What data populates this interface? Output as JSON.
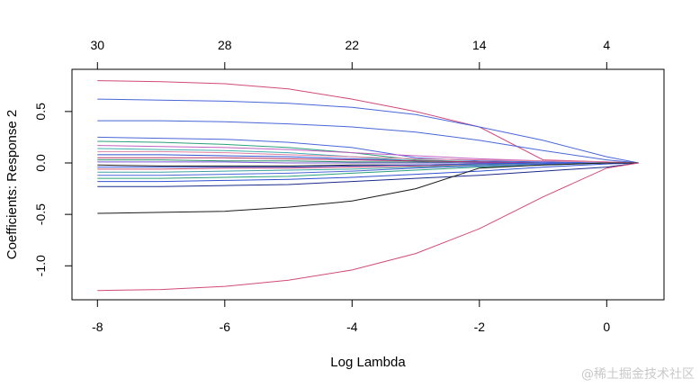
{
  "chart_data": {
    "type": "line",
    "xlabel": "Log Lambda",
    "ylabel": "Coefficients: Response 2",
    "xlim": [
      -8.4,
      0.9
    ],
    "ylim": [
      -1.33,
      0.91
    ],
    "x_ticks": [
      -8,
      -6,
      -4,
      -2,
      0
    ],
    "x_tick_labels": [
      "-8",
      "-6",
      "-4",
      "-2",
      "0"
    ],
    "y_ticks": [
      -1.0,
      -0.5,
      0.0,
      0.5
    ],
    "y_tick_labels": [
      "-1.0",
      "-0.5",
      "0.0",
      "0.5"
    ],
    "top_axis": {
      "positions": [
        -8,
        -6,
        -4,
        -2,
        0
      ],
      "labels": [
        "30",
        "28",
        "22",
        "14",
        "4"
      ]
    },
    "x": [
      -8,
      -7,
      -6,
      -5,
      -4,
      -3,
      -2,
      -1,
      0,
      0.5
    ],
    "series": [
      {
        "color": "#d04a7a",
        "values": [
          0.8,
          0.79,
          0.77,
          0.72,
          0.62,
          0.5,
          0.35,
          0.03,
          0.01,
          0.0
        ]
      },
      {
        "color": "#4a66d8",
        "values": [
          0.62,
          0.61,
          0.6,
          0.58,
          0.54,
          0.47,
          0.35,
          0.22,
          0.06,
          0.0
        ]
      },
      {
        "color": "#4a66d8",
        "values": [
          0.41,
          0.41,
          0.4,
          0.38,
          0.35,
          0.3,
          0.22,
          0.12,
          0.03,
          0.0
        ]
      },
      {
        "color": "#4a66d8",
        "values": [
          0.25,
          0.24,
          0.23,
          0.2,
          0.15,
          0.05,
          0.02,
          0.01,
          0.0,
          0.0
        ]
      },
      {
        "color": "#2aa07a",
        "values": [
          0.21,
          0.2,
          0.18,
          0.15,
          0.1,
          0.03,
          0.01,
          0.0,
          0.0,
          0.0
        ]
      },
      {
        "color": "#c060c0",
        "values": [
          0.17,
          0.16,
          0.15,
          0.13,
          0.1,
          0.07,
          0.04,
          0.02,
          0.01,
          0.0
        ]
      },
      {
        "color": "#40b0b0",
        "values": [
          0.14,
          0.13,
          0.12,
          0.1,
          0.06,
          0.02,
          0.01,
          0.0,
          0.0,
          0.0
        ]
      },
      {
        "color": "#e080a0",
        "values": [
          0.11,
          0.11,
          0.1,
          0.08,
          0.06,
          0.04,
          0.03,
          0.02,
          0.01,
          0.0
        ]
      },
      {
        "color": "#3050d0",
        "values": [
          0.08,
          0.08,
          0.07,
          0.06,
          0.04,
          0.02,
          0.01,
          0.0,
          0.0,
          0.0
        ]
      },
      {
        "color": "#b03060",
        "values": [
          0.05,
          0.05,
          0.05,
          0.04,
          0.03,
          0.02,
          0.01,
          0.0,
          0.0,
          0.0
        ]
      },
      {
        "color": "#2a8a6a",
        "values": [
          0.03,
          0.03,
          0.02,
          0.02,
          0.01,
          0.01,
          0.0,
          0.0,
          0.0,
          0.0
        ]
      },
      {
        "color": "#7a5ad0",
        "values": [
          0.01,
          0.01,
          0.01,
          0.0,
          0.0,
          0.0,
          0.0,
          0.0,
          0.0,
          0.0
        ]
      },
      {
        "color": "#1a1a1a",
        "values": [
          -0.02,
          -0.03,
          -0.03,
          -0.03,
          -0.02,
          -0.02,
          -0.01,
          0.0,
          0.0,
          0.0
        ]
      },
      {
        "color": "#3a5ae0",
        "values": [
          -0.04,
          -0.04,
          -0.04,
          -0.04,
          -0.03,
          -0.02,
          -0.01,
          0.0,
          0.0,
          0.0
        ]
      },
      {
        "color": "#d05070",
        "values": [
          -0.06,
          -0.06,
          -0.05,
          -0.05,
          -0.04,
          -0.03,
          -0.02,
          -0.01,
          0.0,
          0.0
        ]
      },
      {
        "color": "#40a0a0",
        "values": [
          -0.09,
          -0.09,
          -0.08,
          -0.07,
          -0.06,
          -0.04,
          -0.02,
          -0.01,
          0.0,
          0.0
        ]
      },
      {
        "color": "#4a66d8",
        "values": [
          -0.12,
          -0.12,
          -0.11,
          -0.1,
          -0.08,
          -0.05,
          -0.03,
          -0.01,
          0.0,
          0.0
        ]
      },
      {
        "color": "#2aa07a",
        "values": [
          -0.15,
          -0.15,
          -0.14,
          -0.13,
          -0.1,
          -0.07,
          -0.04,
          -0.02,
          0.0,
          0.0
        ]
      },
      {
        "color": "#3050d0",
        "values": [
          -0.18,
          -0.18,
          -0.17,
          -0.16,
          -0.14,
          -0.11,
          -0.08,
          -0.04,
          -0.01,
          0.0
        ]
      },
      {
        "color": "#1a2a8a",
        "values": [
          -0.23,
          -0.23,
          -0.22,
          -0.21,
          -0.18,
          -0.15,
          -0.12,
          -0.08,
          -0.04,
          0.0
        ]
      },
      {
        "color": "#1a1a1a",
        "values": [
          -0.49,
          -0.48,
          -0.47,
          -0.43,
          -0.37,
          -0.25,
          -0.05,
          -0.02,
          0.0,
          0.0
        ]
      },
      {
        "color": "#d04a7a",
        "values": [
          -1.24,
          -1.23,
          -1.2,
          -1.14,
          -1.04,
          -0.88,
          -0.64,
          -0.33,
          -0.05,
          0.0
        ]
      }
    ]
  },
  "watermark": "@稀土掘金技术社区"
}
